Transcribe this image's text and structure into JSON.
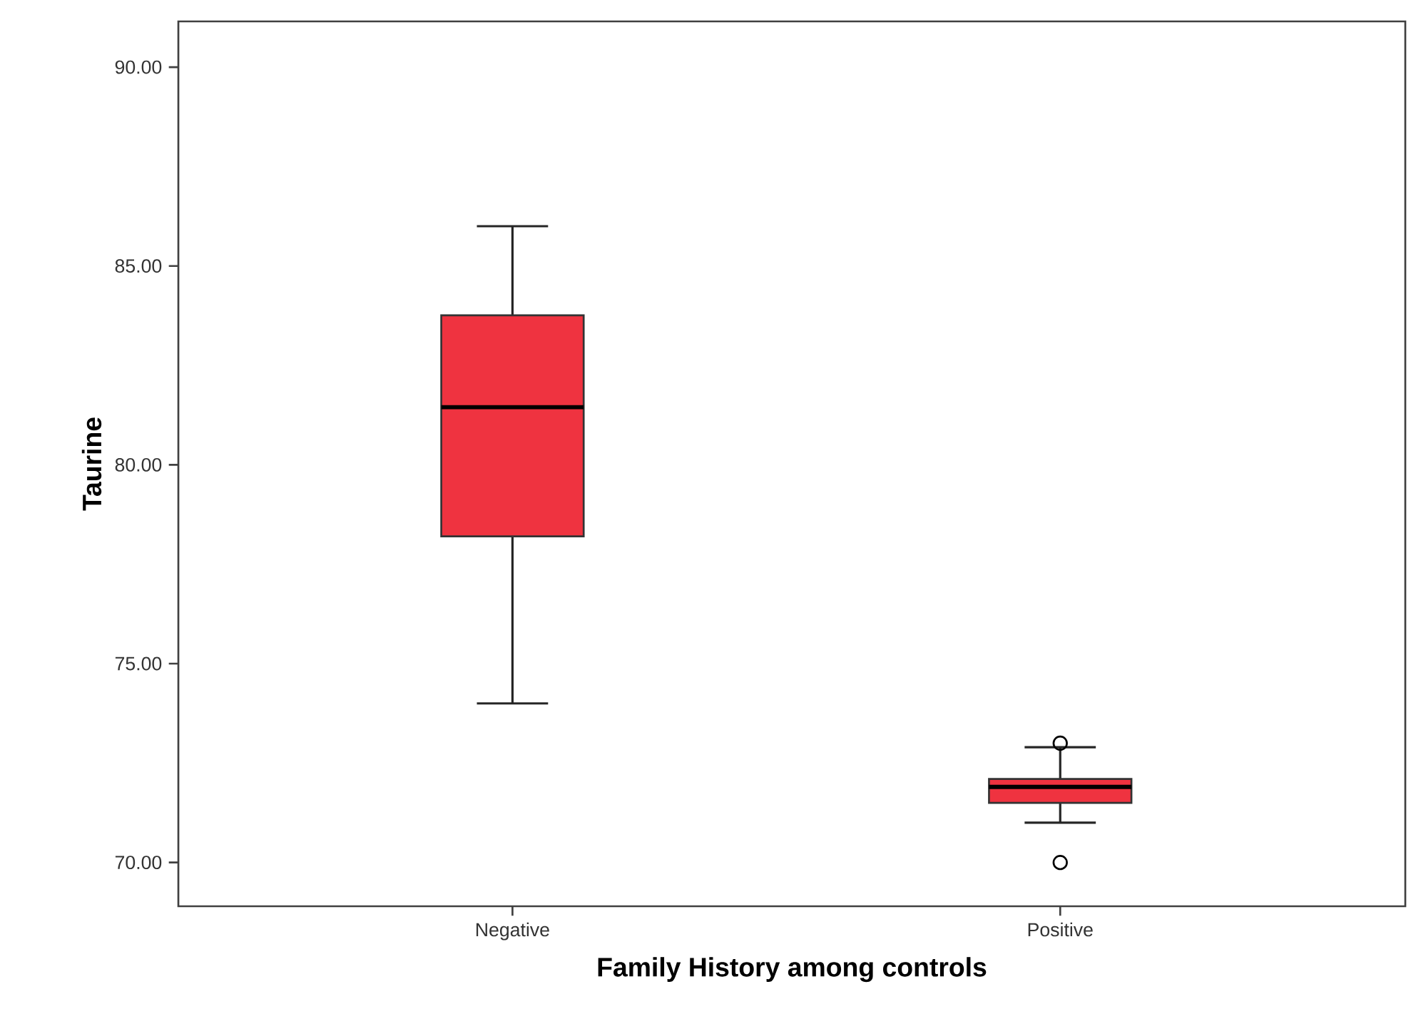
{
  "chart_data": {
    "type": "box",
    "xlabel": "Family History among controls",
    "ylabel": "Taurine",
    "categories": [
      "Negative",
      "Positive"
    ],
    "color": "#ef3340",
    "boxes": [
      {
        "low": 74.0,
        "q1": 78.2,
        "median": 81.45,
        "q3": 83.76,
        "high": 86.0
      },
      {
        "low": 71.0,
        "q1": 71.5,
        "median": 71.9,
        "q3": 72.1,
        "high": 72.9,
        "outliers": [
          73.0,
          70.0
        ]
      }
    ],
    "ylim": [
      68.9,
      91.15
    ],
    "yticks": [
      {
        "value": 70,
        "label": "70.00"
      },
      {
        "value": 75,
        "label": "75.00"
      },
      {
        "value": 80,
        "label": "80.00"
      },
      {
        "value": 85,
        "label": "85.00"
      },
      {
        "value": 90,
        "label": "90.00"
      }
    ],
    "grid": false
  }
}
